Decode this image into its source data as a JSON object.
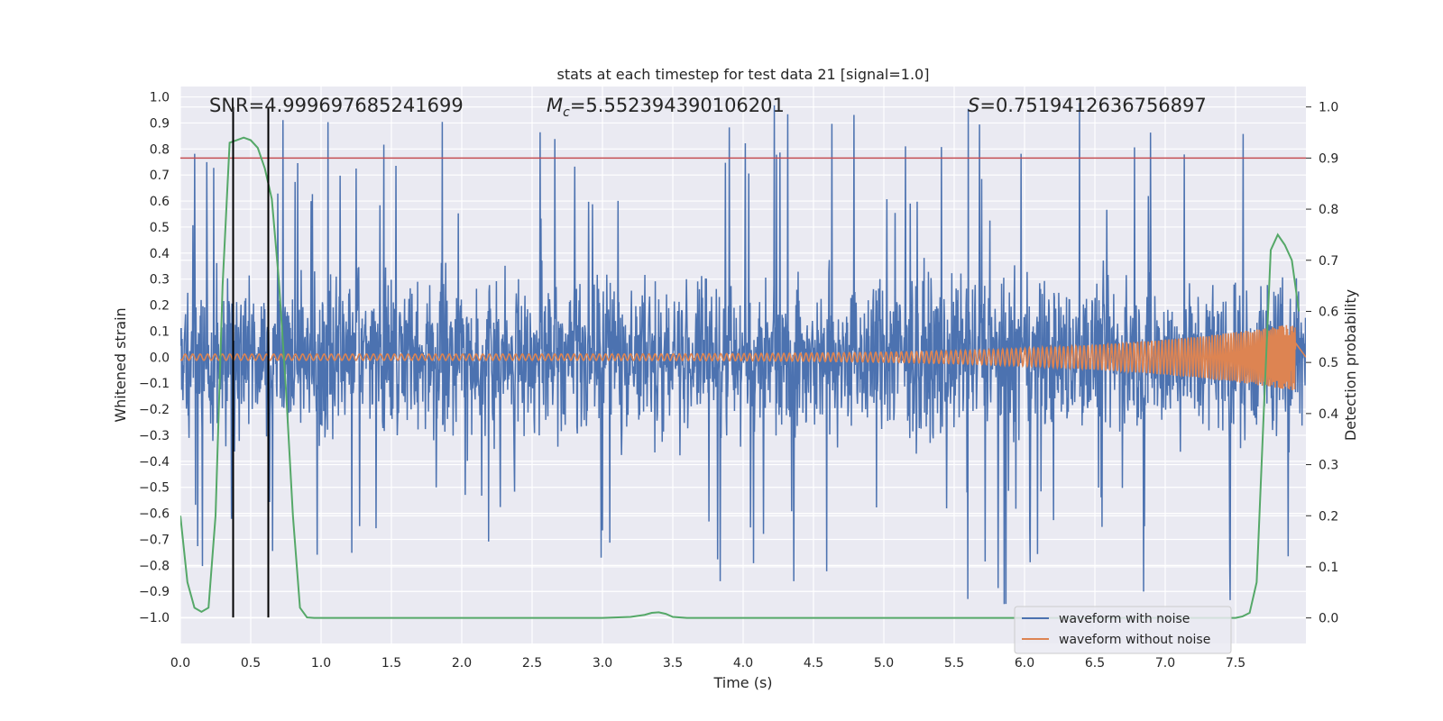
{
  "chart_data": {
    "type": "line",
    "title": "stats at each timestep for test data 21 [signal=1.0]",
    "xlabel": "Time (s)",
    "ylabel": "Whitened strain",
    "ylabel_right": "Detection probability",
    "xlim": [
      0,
      8
    ],
    "ylim": [
      -1.1,
      1.04
    ],
    "ylim_right": [
      -0.05,
      1.04
    ],
    "x_ticks": [
      0.0,
      0.5,
      1.0,
      1.5,
      2.0,
      2.5,
      3.0,
      3.5,
      4.0,
      4.5,
      5.0,
      5.5,
      6.0,
      6.5,
      7.0,
      7.5
    ],
    "x_tick_labels": [
      "0.0",
      "0.5",
      "1.0",
      "1.5",
      "2.0",
      "2.5",
      "3.0",
      "3.5",
      "4.0",
      "4.5",
      "5.0",
      "5.5",
      "6.0",
      "6.5",
      "7.0",
      "7.5"
    ],
    "y_ticks": [
      1.0,
      0.9,
      0.8,
      0.7,
      0.6,
      0.5,
      0.4,
      0.3,
      0.2,
      0.1,
      0.0,
      -0.1,
      -0.2,
      -0.3,
      -0.4,
      -0.5,
      -0.6,
      -0.7,
      -0.8,
      -0.9,
      -1.0
    ],
    "y_tick_labels": [
      "1.0",
      "0.9",
      "0.8",
      "0.7",
      "0.6",
      "0.5",
      "0.4",
      "0.3",
      "0.2",
      "0.1",
      "0.0",
      "−0.1",
      "−0.2",
      "−0.3",
      "−0.4",
      "−0.5",
      "−0.6",
      "−0.7",
      "−0.8",
      "−0.9",
      "−1.0"
    ],
    "y_right_ticks": [
      1.0,
      0.9,
      0.8,
      0.7,
      0.6,
      0.5,
      0.4,
      0.3,
      0.2,
      0.1,
      0.0
    ],
    "y_right_tick_labels": [
      "1.0",
      "0.9",
      "0.8",
      "0.7",
      "0.6",
      "0.5",
      "0.4",
      "0.3",
      "0.2",
      "0.1",
      "0.0"
    ],
    "annotations": {
      "snr": "SNR=4.999697685241699",
      "mc_symbol": "M",
      "mc_sub": "c",
      "mc_value": "=5.552394390106201",
      "s_symbol": "S",
      "s_value": "=0.7519412636756897"
    },
    "threshold_right": 0.9,
    "vertical_markers": [
      0.375,
      0.625
    ],
    "series": [
      {
        "name": "waveform with noise",
        "color": "#4c72b0",
        "kind": "noise",
        "typical_envelope": 0.45,
        "max_abs": 0.98
      },
      {
        "name": "waveform without noise",
        "color": "#dd8452",
        "kind": "chirp",
        "amp_start": 0.012,
        "amp_end": 0.13,
        "t_merge": 7.93
      },
      {
        "name": "detection probability",
        "color": "#55a868",
        "axis": "right",
        "x": [
          0.0,
          0.05,
          0.1,
          0.15,
          0.2,
          0.25,
          0.3,
          0.35,
          0.4,
          0.45,
          0.5,
          0.55,
          0.6,
          0.65,
          0.7,
          0.75,
          0.8,
          0.85,
          0.9,
          0.95,
          1.0,
          1.5,
          2.0,
          2.5,
          3.0,
          3.2,
          3.3,
          3.35,
          3.4,
          3.45,
          3.5,
          3.6,
          4.0,
          5.0,
          6.0,
          7.0,
          7.5,
          7.55,
          7.6,
          7.65,
          7.7,
          7.75,
          7.8,
          7.85,
          7.9,
          7.95
        ],
        "y": [
          0.2,
          0.07,
          0.02,
          0.012,
          0.02,
          0.2,
          0.65,
          0.93,
          0.935,
          0.94,
          0.935,
          0.92,
          0.88,
          0.82,
          0.66,
          0.45,
          0.2,
          0.02,
          0.001,
          0.0,
          0.0,
          0.0,
          0.0,
          0.0,
          0.0,
          0.002,
          0.006,
          0.01,
          0.011,
          0.008,
          0.002,
          0.0,
          0.0,
          0.0,
          0.0,
          0.0,
          0.0,
          0.003,
          0.01,
          0.07,
          0.4,
          0.72,
          0.75,
          0.73,
          0.7,
          0.6
        ]
      }
    ],
    "legend": {
      "position": "lower-right",
      "entries": [
        "waveform with noise",
        "waveform without noise"
      ]
    },
    "grid": true,
    "colors": {
      "background": "#eaeaf2",
      "grid": "#ffffff",
      "threshold": "#c44e52",
      "marker": "#000000"
    }
  }
}
